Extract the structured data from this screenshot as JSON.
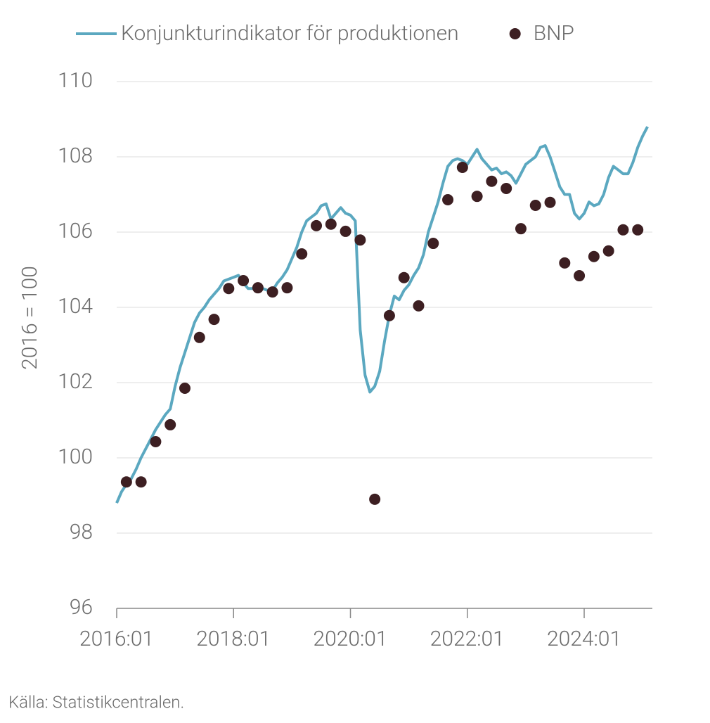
{
  "chart_data": {
    "type": "line",
    "ylabel": "2016 = 100",
    "source": "Källa: Statistikcentralen.",
    "xlim": [
      "2016:01",
      "2025:03"
    ],
    "xticks": [
      "2016:01",
      "2018:01",
      "2020:01",
      "2022:01",
      "2024:01"
    ],
    "ylim": [
      96,
      110
    ],
    "yticks": [
      96,
      98,
      100,
      102,
      104,
      106,
      108,
      110
    ],
    "grid": true,
    "legend": "top",
    "series": [
      {
        "name": "Konjunkturindikator för produktionen",
        "type": "line",
        "color": "#5ba8c0",
        "x": [
          "2016:01",
          "2016:02",
          "2016:03",
          "2016:04",
          "2016:05",
          "2016:06",
          "2016:07",
          "2016:08",
          "2016:09",
          "2016:10",
          "2016:11",
          "2016:12",
          "2017:01",
          "2017:02",
          "2017:03",
          "2017:04",
          "2017:05",
          "2017:06",
          "2017:07",
          "2017:08",
          "2017:09",
          "2017:10",
          "2017:11",
          "2017:12",
          "2018:01",
          "2018:02",
          "2018:03",
          "2018:04",
          "2018:05",
          "2018:06",
          "2018:07",
          "2018:08",
          "2018:09",
          "2018:10",
          "2018:11",
          "2018:12",
          "2019:01",
          "2019:02",
          "2019:03",
          "2019:04",
          "2019:05",
          "2019:06",
          "2019:07",
          "2019:08",
          "2019:09",
          "2019:10",
          "2019:11",
          "2019:12",
          "2020:01",
          "2020:02",
          "2020:03",
          "2020:04",
          "2020:05",
          "2020:06",
          "2020:07",
          "2020:08",
          "2020:09",
          "2020:10",
          "2020:11",
          "2020:12",
          "2021:01",
          "2021:02",
          "2021:03",
          "2021:04",
          "2021:05",
          "2021:06",
          "2021:07",
          "2021:08",
          "2021:09",
          "2021:10",
          "2021:11",
          "2021:12",
          "2022:01",
          "2022:02",
          "2022:03",
          "2022:04",
          "2022:05",
          "2022:06",
          "2022:07",
          "2022:08",
          "2022:09",
          "2022:10",
          "2022:11",
          "2022:12",
          "2023:01",
          "2023:02",
          "2023:03",
          "2023:04",
          "2023:05",
          "2023:06",
          "2023:07",
          "2023:08",
          "2023:09",
          "2023:10",
          "2023:11",
          "2023:12",
          "2024:01",
          "2024:02",
          "2024:03",
          "2024:04",
          "2024:05",
          "2024:06",
          "2024:07",
          "2024:08",
          "2024:09",
          "2024:10",
          "2024:11",
          "2024:12",
          "2025:01",
          "2025:02"
        ],
        "values": [
          98.8,
          99.1,
          99.3,
          99.45,
          99.7,
          100.0,
          100.25,
          100.5,
          100.75,
          100.95,
          101.15,
          101.3,
          101.9,
          102.4,
          102.8,
          103.2,
          103.6,
          103.85,
          104.0,
          104.2,
          104.35,
          104.5,
          104.7,
          104.75,
          104.8,
          104.85,
          104.65,
          104.5,
          104.5,
          104.6,
          104.5,
          104.45,
          104.45,
          104.65,
          104.8,
          105.0,
          105.3,
          105.6,
          106.0,
          106.3,
          106.4,
          106.5,
          106.7,
          106.75,
          106.35,
          106.5,
          106.65,
          106.5,
          106.45,
          106.3,
          103.4,
          102.2,
          101.75,
          101.9,
          102.3,
          103.1,
          103.8,
          104.3,
          104.2,
          104.45,
          104.6,
          104.85,
          105.05,
          105.4,
          106.0,
          106.4,
          106.8,
          107.3,
          107.75,
          107.9,
          107.95,
          107.9,
          107.8,
          108.0,
          108.2,
          107.95,
          107.8,
          107.65,
          107.7,
          107.55,
          107.6,
          107.5,
          107.3,
          107.55,
          107.8,
          107.9,
          108.0,
          108.25,
          108.3,
          108.0,
          107.6,
          107.2,
          107.0,
          107.0,
          106.5,
          106.35,
          106.5,
          106.8,
          106.7,
          106.75,
          107.0,
          107.45,
          107.75,
          107.65,
          107.55,
          107.55,
          107.85,
          108.25,
          108.55,
          108.8
        ]
      },
      {
        "name": "BNP",
        "type": "scatter",
        "color": "#3d1f22",
        "x": [
          "2016:03",
          "2016:06",
          "2016:09",
          "2016:12",
          "2017:03",
          "2017:06",
          "2017:09",
          "2017:12",
          "2018:03",
          "2018:06",
          "2018:09",
          "2018:12",
          "2019:03",
          "2019:06",
          "2019:09",
          "2019:12",
          "2020:03",
          "2020:06",
          "2020:09",
          "2020:12",
          "2021:03",
          "2021:06",
          "2021:09",
          "2021:12",
          "2022:03",
          "2022:06",
          "2022:09",
          "2022:12",
          "2023:03",
          "2023:06",
          "2023:09",
          "2023:12",
          "2024:03",
          "2024:06",
          "2024:09",
          "2024:12"
        ],
        "values": [
          99.36,
          99.36,
          100.43,
          100.88,
          101.85,
          103.2,
          103.68,
          104.5,
          104.71,
          104.52,
          104.41,
          104.52,
          105.42,
          106.17,
          106.21,
          106.02,
          105.79,
          98.9,
          103.78,
          104.79,
          104.04,
          105.7,
          106.86,
          107.72,
          106.95,
          107.35,
          107.16,
          106.09,
          106.71,
          106.79,
          105.18,
          104.84,
          105.35,
          105.5,
          106.06,
          106.06
        ]
      }
    ]
  }
}
